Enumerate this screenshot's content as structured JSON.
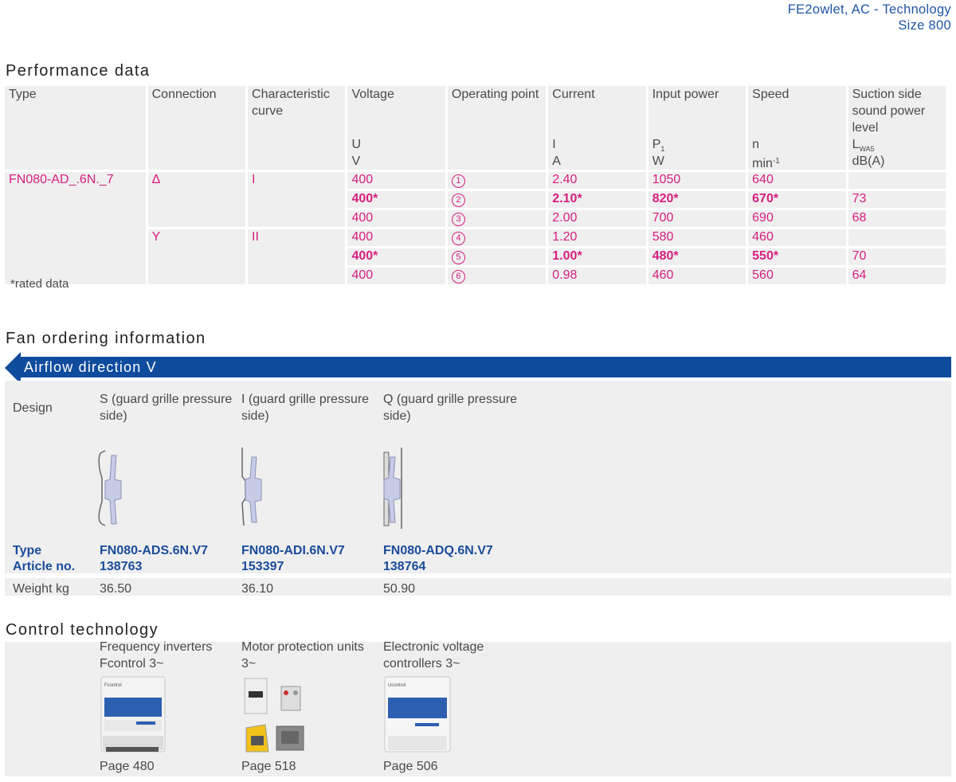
{
  "header": {
    "line1": "FE2owlet, AC - Technology",
    "line2": "Size 800"
  },
  "performance": {
    "title": "Performance data",
    "headers": {
      "type": "Type",
      "connection": "Connection",
      "curve": "Characteristic curve",
      "voltage": "Voltage",
      "voltage_sym": "U",
      "voltage_unit": "V",
      "op": "Operating point",
      "current": "Current",
      "current_sym": "I",
      "current_unit": "A",
      "power": "Input power",
      "power_sym": "P",
      "power_sub": "1",
      "power_unit": "W",
      "speed": "Speed",
      "speed_sym": "n",
      "speed_unit": "min",
      "speed_sup": "-1",
      "sound": "Suction side sound power level",
      "sound_sym": "L",
      "sound_sub": "WA5",
      "sound_unit": "dB(A)"
    },
    "type_value": "FN080-AD_.6N._7",
    "conn_delta": "Δ",
    "conn_y": "Y",
    "curve_1": "I",
    "curve_2": "II",
    "rows": [
      {
        "voltage": "400",
        "op": "1",
        "current": "2.40",
        "power": "1050",
        "speed": "640",
        "sound": ""
      },
      {
        "voltage": "400*",
        "op": "2",
        "current": "2.10*",
        "power": "820*",
        "speed": "670*",
        "sound": "73"
      },
      {
        "voltage": "400",
        "op": "3",
        "current": "2.00",
        "power": "700",
        "speed": "690",
        "sound": "68"
      },
      {
        "voltage": "400",
        "op": "4",
        "current": "1.20",
        "power": "580",
        "speed": "460",
        "sound": ""
      },
      {
        "voltage": "400*",
        "op": "5",
        "current": "1.00*",
        "power": "480*",
        "speed": "550*",
        "sound": "70"
      },
      {
        "voltage": "400",
        "op": "6",
        "current": "0.98",
        "power": "460",
        "speed": "560",
        "sound": "64"
      }
    ],
    "note": "*rated data"
  },
  "ordering": {
    "title": "Fan ordering information",
    "banner": "Airflow direction V",
    "design_label": "Design",
    "type_label": "Type",
    "article_label": "Article no.",
    "weight_label": "Weight kg",
    "columns": [
      {
        "design": "S (guard grille pressure side)",
        "type": "FN080-ADS.6N.V7",
        "article": "138763",
        "weight": "36.50"
      },
      {
        "design": "I (guard grille pressure side)",
        "type": "FN080-ADI.6N.V7",
        "article": "153397",
        "weight": "36.10"
      },
      {
        "design": "Q (guard grille pressure side)",
        "type": "FN080-ADQ.6N.V7",
        "article": "138764",
        "weight": "50.90"
      }
    ]
  },
  "control": {
    "title": "Control technology",
    "items": [
      {
        "name": "Frequency inverters Fcontrol 3~",
        "page": "Page 480",
        "brand": "Fcontrol"
      },
      {
        "name": "Motor protection units 3~",
        "page": "Page 518"
      },
      {
        "name": "Electronic voltage controllers 3~",
        "page": "Page 506",
        "brand": "Ucontrol"
      }
    ]
  },
  "colors": {
    "accent_blue": "#0f4c9e",
    "magenta": "#d61f7f",
    "panel_grey": "#efefef"
  }
}
